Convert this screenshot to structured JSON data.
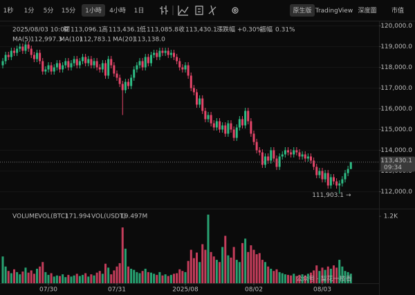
{
  "toolbar": {
    "intervals": [
      "1秒",
      "1分",
      "5分",
      "15分",
      "1小時",
      "4小時",
      "1日"
    ],
    "active_interval": 4,
    "views": [
      "原生版",
      "TradingView",
      "深度圖",
      "市值"
    ],
    "active_view": 0
  },
  "chart_data": {
    "type": "candlestick",
    "header": {
      "time": "2025/08/03 10:00",
      "items": [
        {
          "name": "開",
          "value": "113,096.1"
        },
        {
          "name": "高",
          "value": "113,436.1"
        },
        {
          "name": "低",
          "value": "113,085.8"
        },
        {
          "name": "收",
          "value": "113,430.1"
        },
        {
          "name": "漲跌幅",
          "value": "+0.30%"
        },
        {
          "name": "振幅",
          "value": "0.31%"
        }
      ]
    },
    "ma": [
      {
        "name": "MA(5)",
        "value": "112,997.3",
        "color": "#e8c547"
      },
      {
        "name": "MA(10)",
        "value": "112,783.1",
        "color": "#e58aa6"
      },
      {
        "name": "MA(20)",
        "value": "113,138.0",
        "color": "#8fb8e8"
      }
    ],
    "up_color": "#2ebd85",
    "down_color": "#e5466a",
    "grid": true,
    "categories": [
      null,
      null,
      null,
      null,
      null,
      null,
      null,
      null,
      null,
      null,
      null,
      null,
      null,
      null,
      null,
      null,
      "07/30",
      null,
      null,
      null,
      null,
      null,
      null,
      null,
      null,
      null,
      null,
      null,
      null,
      null,
      null,
      null,
      null,
      null,
      null,
      null,
      null,
      null,
      null,
      null,
      "07/31",
      null,
      null,
      null,
      null,
      null,
      null,
      null,
      null,
      null,
      null,
      null,
      null,
      null,
      null,
      null,
      null,
      null,
      null,
      null,
      null,
      null,
      null,
      null,
      "2025/08",
      null,
      null,
      null,
      null,
      null,
      null,
      null,
      null,
      null,
      null,
      null,
      null,
      null,
      null,
      null,
      null,
      null,
      null,
      null,
      null,
      null,
      null,
      null,
      "08/02",
      null,
      null,
      null,
      null,
      null,
      null,
      null,
      null,
      null,
      null,
      null,
      null,
      null,
      null,
      null,
      null,
      null,
      null,
      null,
      null,
      null,
      null,
      null,
      "08/03",
      null,
      null,
      null,
      null,
      null,
      null,
      null,
      null,
      null,
      null
    ],
    "ohlc": [
      [
        118100,
        118450,
        117950,
        118300
      ],
      [
        118300,
        118750,
        118150,
        118600
      ],
      [
        118600,
        118750,
        118350,
        118500
      ],
      [
        118500,
        118950,
        118350,
        118800
      ],
      [
        118800,
        118950,
        118550,
        118700
      ],
      [
        118700,
        119050,
        118550,
        118900
      ],
      [
        118900,
        119150,
        118750,
        119000
      ],
      [
        119000,
        119150,
        118650,
        118800
      ],
      [
        118800,
        119250,
        118650,
        119100
      ],
      [
        119100,
        119250,
        118750,
        118900
      ],
      [
        118900,
        119050,
        118450,
        118600
      ],
      [
        118600,
        118750,
        118250,
        118400
      ],
      [
        118400,
        118850,
        118250,
        118700
      ],
      [
        118700,
        118850,
        118150,
        118300
      ],
      [
        118300,
        118450,
        117650,
        117800
      ],
      [
        117800,
        118050,
        117650,
        117900
      ],
      [
        117900,
        118250,
        117750,
        118100
      ],
      [
        118100,
        118250,
        117650,
        117800
      ],
      [
        117800,
        118150,
        117650,
        118000
      ],
      [
        118000,
        118350,
        117850,
        118200
      ],
      [
        118200,
        118350,
        117750,
        117900
      ],
      [
        117900,
        118250,
        117750,
        118100
      ],
      [
        118100,
        118450,
        117950,
        118300
      ],
      [
        118300,
        118450,
        117850,
        118000
      ],
      [
        118000,
        118350,
        117850,
        118200
      ],
      [
        118200,
        118550,
        118050,
        118400
      ],
      [
        118400,
        118550,
        117950,
        118100
      ],
      [
        118100,
        118450,
        117950,
        118300
      ],
      [
        118300,
        118650,
        118150,
        118500
      ],
      [
        118500,
        118650,
        118050,
        118200
      ],
      [
        118200,
        118550,
        118050,
        118400
      ],
      [
        118400,
        118550,
        117950,
        118100
      ],
      [
        118100,
        118450,
        117950,
        118300
      ],
      [
        118300,
        118450,
        117850,
        118000
      ],
      [
        118000,
        118150,
        117750,
        117900
      ],
      [
        117900,
        118350,
        117750,
        118200
      ],
      [
        118200,
        118350,
        117450,
        117600
      ],
      [
        117600,
        118550,
        117450,
        118400
      ],
      [
        118400,
        118550,
        117950,
        118100
      ],
      [
        118100,
        118250,
        117550,
        117700
      ],
      [
        117700,
        117850,
        117350,
        117500
      ],
      [
        117500,
        117650,
        117050,
        117200
      ],
      [
        117200,
        117350,
        115700,
        116900
      ],
      [
        116900,
        117450,
        116750,
        117300
      ],
      [
        117300,
        117450,
        116950,
        117100
      ],
      [
        117100,
        117650,
        116950,
        117500
      ],
      [
        117500,
        118050,
        117350,
        117900
      ],
      [
        117900,
        118250,
        117750,
        118100
      ],
      [
        118100,
        118450,
        117950,
        118300
      ],
      [
        118300,
        118450,
        117850,
        118000
      ],
      [
        118000,
        118650,
        117850,
        118500
      ],
      [
        118500,
        118650,
        118050,
        118200
      ],
      [
        118200,
        118750,
        118050,
        118600
      ],
      [
        118600,
        118850,
        118450,
        118700
      ],
      [
        118700,
        118850,
        118350,
        118500
      ],
      [
        118500,
        118950,
        118350,
        118800
      ],
      [
        118800,
        118950,
        118550,
        118700
      ],
      [
        118700,
        118950,
        118550,
        118800
      ],
      [
        118800,
        118950,
        118450,
        118600
      ],
      [
        118600,
        118850,
        118450,
        118700
      ],
      [
        118700,
        118850,
        118350,
        118500
      ],
      [
        118500,
        118650,
        118150,
        118300
      ],
      [
        118300,
        118450,
        117850,
        118000
      ],
      [
        118000,
        118150,
        117750,
        117900
      ],
      [
        117900,
        118250,
        117750,
        118100
      ],
      [
        118100,
        118250,
        117450,
        117600
      ],
      [
        117600,
        117750,
        116850,
        117000
      ],
      [
        117000,
        117150,
        116650,
        116800
      ],
      [
        116800,
        116950,
        116050,
        116200
      ],
      [
        116200,
        116650,
        116050,
        116500
      ],
      [
        116500,
        116650,
        115750,
        115900
      ],
      [
        115900,
        116050,
        115350,
        115500
      ],
      [
        115500,
        115850,
        115350,
        115700
      ],
      [
        115700,
        115850,
        115150,
        115300
      ],
      [
        115300,
        115450,
        114950,
        115100
      ],
      [
        115100,
        115550,
        114950,
        115400
      ],
      [
        115400,
        115550,
        114850,
        115000
      ],
      [
        115000,
        115350,
        114850,
        115200
      ],
      [
        115200,
        115350,
        114650,
        114800
      ],
      [
        114800,
        115450,
        114650,
        115300
      ],
      [
        115300,
        115450,
        114850,
        115000
      ],
      [
        115000,
        115150,
        114450,
        114600
      ],
      [
        114600,
        115250,
        114450,
        115100
      ],
      [
        115100,
        115650,
        114950,
        115500
      ],
      [
        115500,
        115650,
        115050,
        115200
      ],
      [
        115200,
        116050,
        115050,
        115900
      ],
      [
        115900,
        116050,
        115250,
        115400
      ],
      [
        115400,
        115550,
        114650,
        114800
      ],
      [
        114800,
        114950,
        114250,
        114400
      ],
      [
        114400,
        114550,
        113850,
        114000
      ],
      [
        114000,
        114150,
        113750,
        113900
      ],
      [
        113900,
        114050,
        113150,
        113300
      ],
      [
        113300,
        113850,
        113150,
        113700
      ],
      [
        113700,
        113850,
        113350,
        113500
      ],
      [
        113500,
        114150,
        113350,
        114000
      ],
      [
        114000,
        114150,
        113450,
        113600
      ],
      [
        113600,
        113750,
        113050,
        113200
      ],
      [
        113200,
        113850,
        113050,
        113700
      ],
      [
        113700,
        113950,
        113550,
        113800
      ],
      [
        113800,
        114150,
        113650,
        114000
      ],
      [
        114000,
        114150,
        113750,
        113900
      ],
      [
        113900,
        114050,
        113650,
        113800
      ],
      [
        113800,
        114150,
        113650,
        114000
      ],
      [
        114000,
        114150,
        113750,
        113900
      ],
      [
        113900,
        114050,
        113550,
        113700
      ],
      [
        113700,
        113950,
        113550,
        113800
      ],
      [
        113800,
        113950,
        113450,
        113600
      ],
      [
        113600,
        113850,
        113450,
        113700
      ],
      [
        113700,
        113850,
        113350,
        113500
      ],
      [
        113500,
        113650,
        113050,
        113200
      ],
      [
        113200,
        113350,
        112650,
        112800
      ],
      [
        112800,
        113150,
        112650,
        113000
      ],
      [
        113000,
        113150,
        112450,
        112600
      ],
      [
        112600,
        113050,
        112450,
        112900
      ],
      [
        112900,
        113050,
        112150,
        112300
      ],
      [
        112300,
        112850,
        112150,
        112700
      ],
      [
        112700,
        112850,
        112350,
        112500
      ],
      [
        112500,
        112650,
        112150,
        112300
      ],
      [
        112300,
        112550,
        111903.1,
        112400
      ],
      [
        112400,
        112750,
        112250,
        112600
      ],
      [
        112600,
        113050,
        112450,
        112900
      ],
      [
        112900,
        113250,
        112750,
        113096.1
      ],
      [
        113096.1,
        113436.1,
        113085.8,
        113430.1
      ]
    ],
    "ylim": [
      111250,
      120250
    ],
    "yticks": [
      {
        "value": 112000,
        "label": "112,000.0"
      },
      {
        "value": 113000,
        "label": "113,000.0"
      },
      {
        "value": 114000,
        "label": "114,000.0"
      },
      {
        "value": 115000,
        "label": "115,000.0"
      },
      {
        "value": 116000,
        "label": "116,000.0"
      },
      {
        "value": 117000,
        "label": "117,000.0"
      },
      {
        "value": 118000,
        "label": "118,000.0"
      },
      {
        "value": 119000,
        "label": "119,000.0"
      },
      {
        "value": 120000,
        "label": "120,000.0"
      }
    ],
    "last_price": {
      "value": 113430.1,
      "label": "113,430.1"
    },
    "countdown": "09:34",
    "low_marker": {
      "value": 111903.1,
      "label": "111,903.1"
    },
    "volume_header": {
      "title": "VOLUME",
      "items": [
        {
          "name": "VOL(BTC)",
          "value": "171.994"
        },
        {
          "name": "VOL(USDT)",
          "value": "19.497M"
        }
      ]
    },
    "volume": [
      480,
      300,
      220,
      180,
      250,
      200,
      160,
      210,
      280,
      190,
      230,
      170,
      260,
      300,
      380,
      200,
      150,
      180,
      120,
      140,
      130,
      160,
      110,
      150,
      120,
      140,
      170,
      130,
      150,
      180,
      120,
      160,
      140,
      190,
      220,
      170,
      350,
      280,
      160,
      230,
      300,
      360,
      1000,
      620,
      300,
      260,
      240,
      200,
      180,
      220,
      260,
      200,
      190,
      170,
      150,
      200,
      140,
      160,
      130,
      150,
      170,
      180,
      250,
      220,
      200,
      400,
      600,
      450,
      550,
      380,
      700,
      600,
      1230,
      560,
      480,
      420,
      380,
      650,
      850,
      500,
      460,
      650,
      420,
      380,
      720,
      800,
      560,
      680,
      600,
      520,
      540,
      420,
      380,
      300,
      260,
      220,
      250,
      200,
      180,
      160,
      150,
      140,
      170,
      130,
      150,
      160,
      140,
      170,
      190,
      230,
      320,
      220,
      280,
      240,
      300,
      260,
      320,
      280,
      420,
      300,
      220,
      200,
      171.994
    ],
    "vlim": [
      0,
      1300
    ],
    "vticks": [
      {
        "value": 1200,
        "label": "1.2K"
      }
    ]
  },
  "watermark": "公众号 · 梨花一枝香"
}
